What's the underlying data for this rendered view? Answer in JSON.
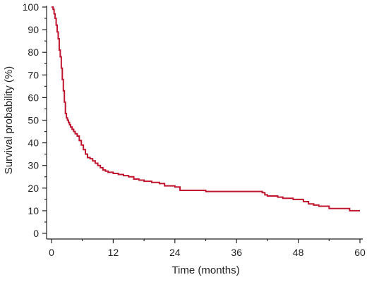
{
  "chart_data": {
    "type": "line",
    "subtype": "step",
    "xlabel": "Time (months)",
    "ylabel": "Survival probability (%)",
    "xlim": [
      0,
      60
    ],
    "ylim": [
      0,
      100
    ],
    "xticks": [
      0,
      12,
      24,
      36,
      48,
      60
    ],
    "yticks": [
      0,
      10,
      20,
      30,
      40,
      50,
      60,
      70,
      80,
      90,
      100
    ],
    "grid": false,
    "legend": "none",
    "series": [
      {
        "color": "#c0152f",
        "x": [
          0,
          0.3,
          0.5,
          0.7,
          0.9,
          1.1,
          1.3,
          1.5,
          1.7,
          1.9,
          2.1,
          2.3,
          2.5,
          2.7,
          2.9,
          3.1,
          3.3,
          3.5,
          3.7,
          4.0,
          4.3,
          4.6,
          5.0,
          5.4,
          5.8,
          6.2,
          6.6,
          7.0,
          7.5,
          8.0,
          8.5,
          9.0,
          9.5,
          10.0,
          10.5,
          11.0,
          12.0,
          13.0,
          14.0,
          15.0,
          16.0,
          17.0,
          18.0,
          19.5,
          21.0,
          22.0,
          24.0,
          25.0,
          30.0,
          36.0,
          41.0,
          41.5,
          42.0,
          43.0,
          44.0,
          45.0,
          46.0,
          47.0,
          48.0,
          49.0,
          50.0,
          51.0,
          52.0,
          54.0,
          57.0,
          58.0,
          60.0
        ],
        "y": [
          100,
          99,
          97,
          95,
          92,
          89,
          86,
          81,
          78,
          73,
          68,
          63,
          58,
          53,
          51,
          50,
          49,
          48,
          47,
          46,
          45,
          44,
          43,
          41,
          39,
          37,
          35,
          33.5,
          33,
          32,
          31,
          30,
          29,
          28,
          27.5,
          27,
          26.5,
          26,
          25.5,
          25,
          24,
          23.5,
          23,
          22.5,
          22,
          21,
          20.5,
          19,
          18.5,
          18.5,
          18,
          17,
          16.5,
          16.5,
          16,
          15.5,
          15.5,
          15,
          15,
          14,
          13,
          12.5,
          12,
          11,
          11,
          10,
          10
        ]
      }
    ]
  }
}
